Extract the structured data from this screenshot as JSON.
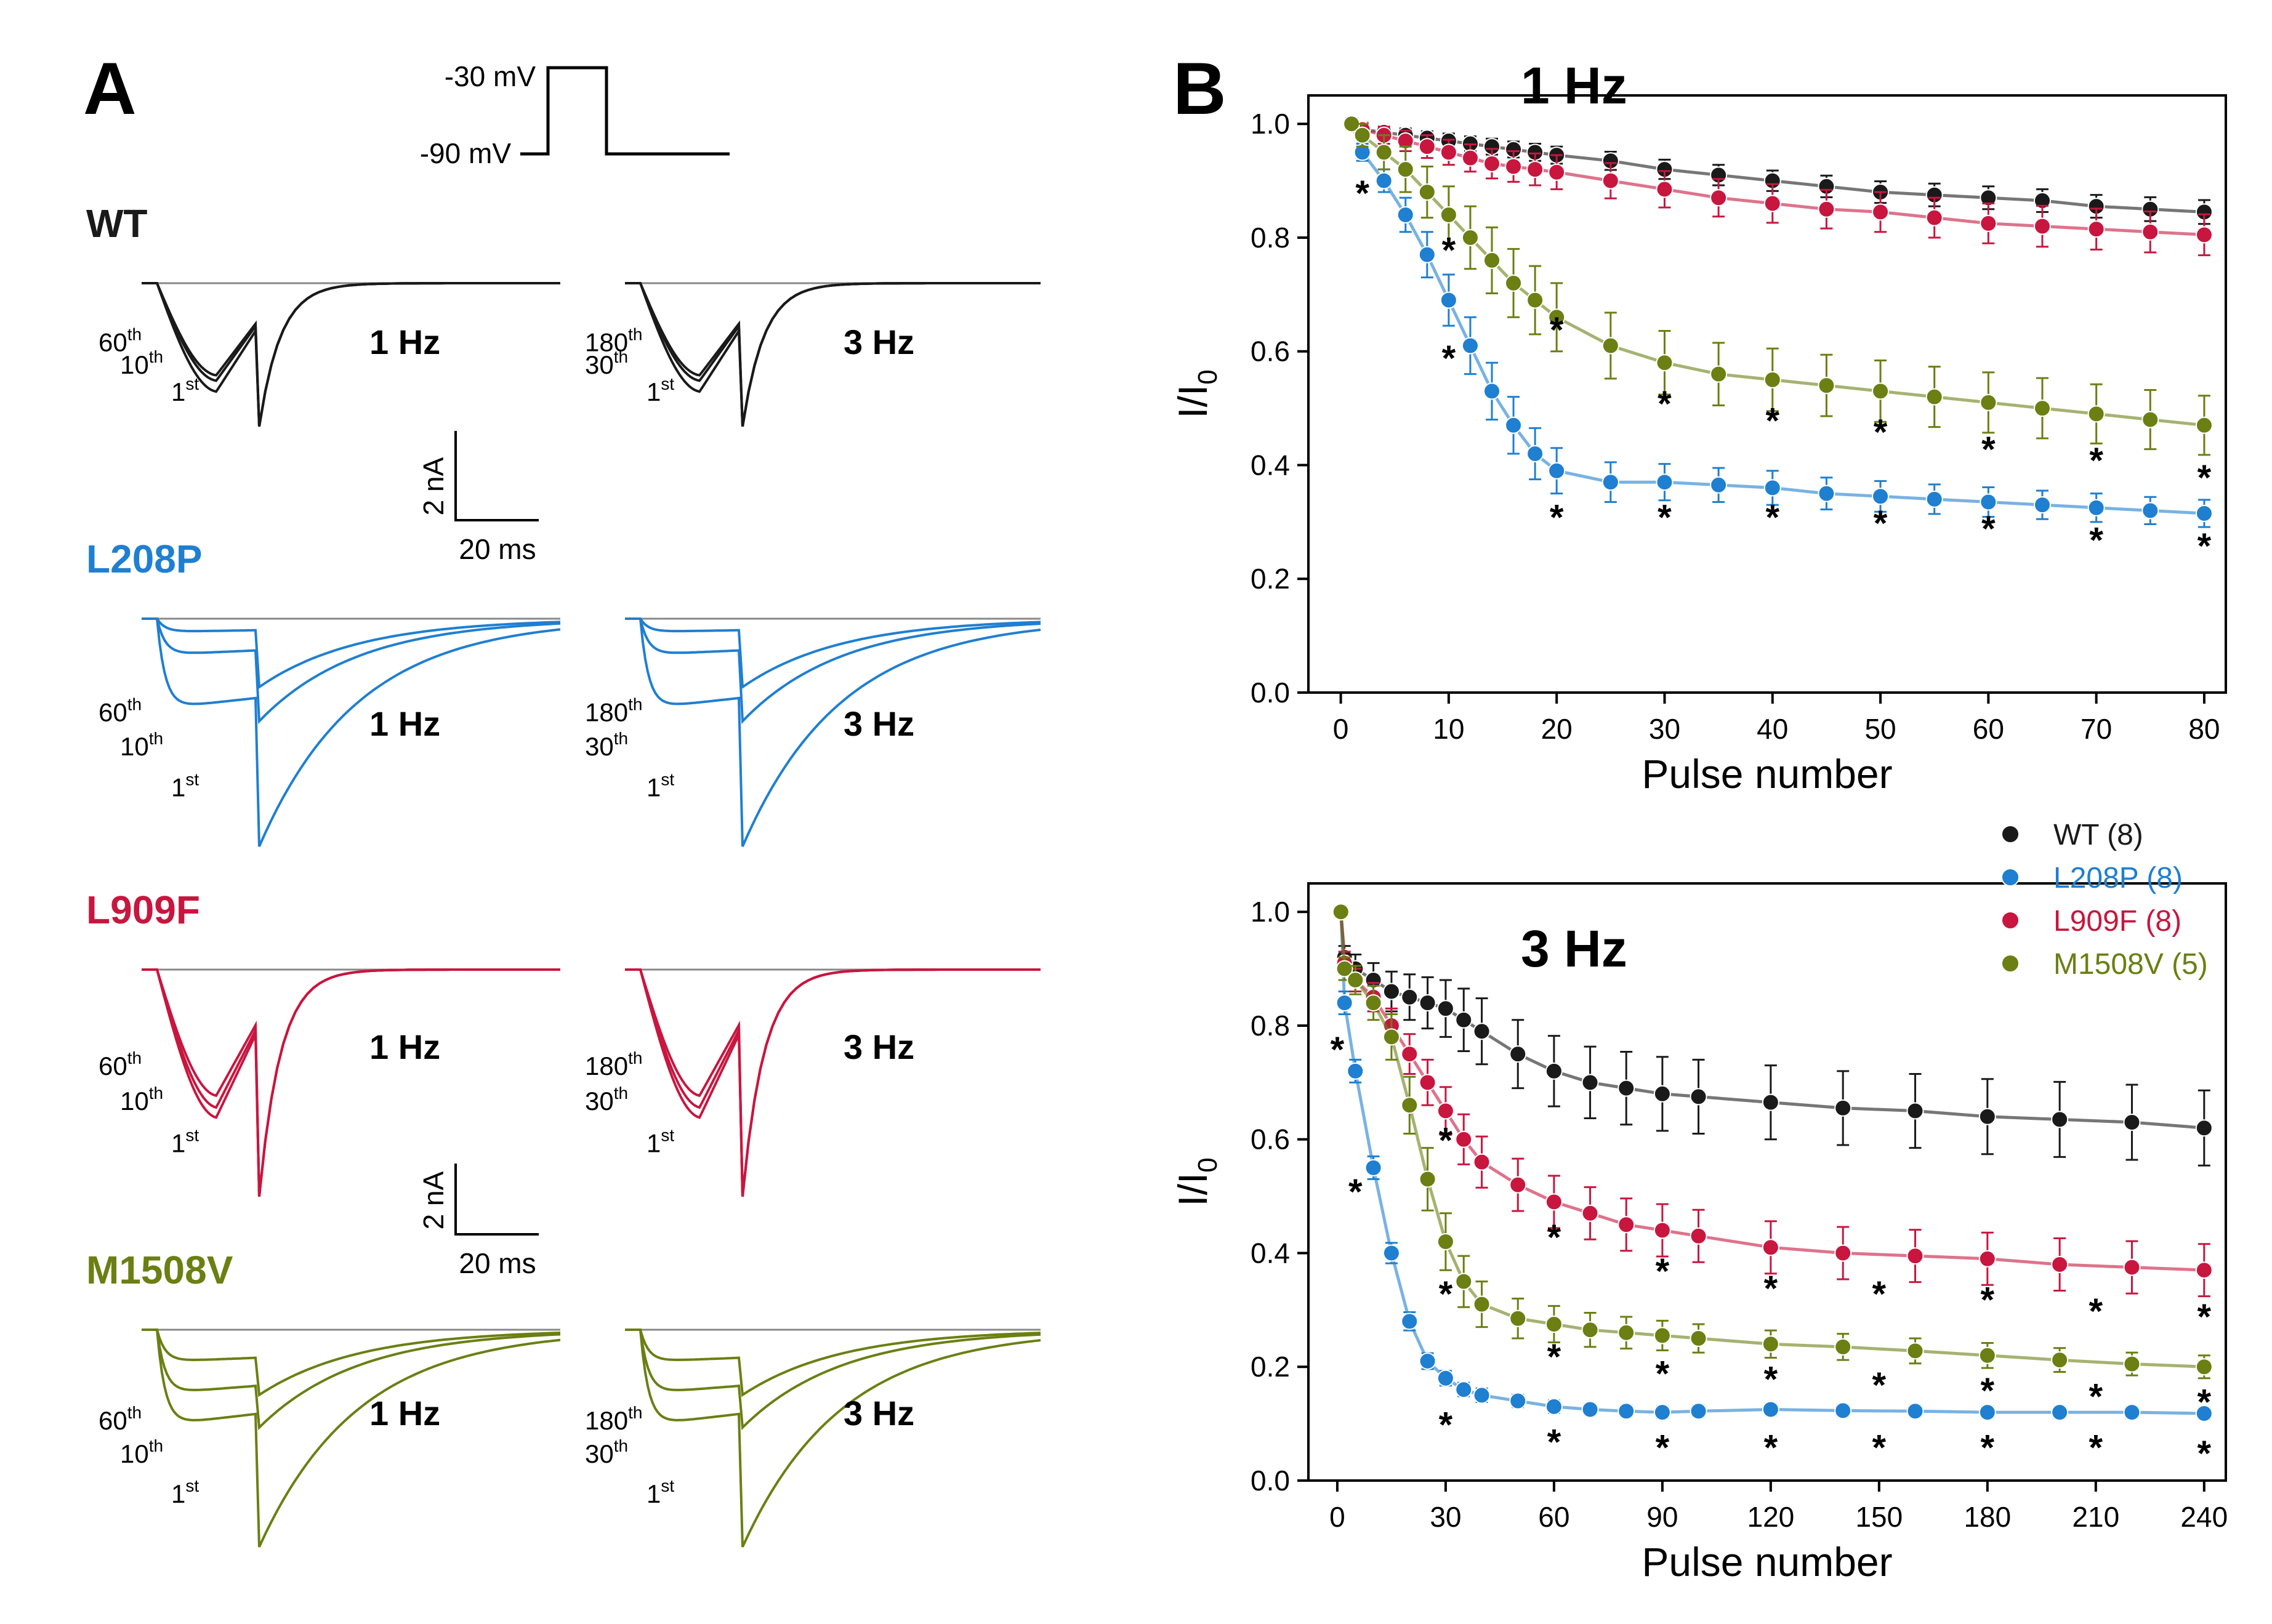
{
  "panels": {
    "a_label": "A",
    "b_label": "B",
    "protocol": {
      "top_label": "-30 mV",
      "bottom_label": "-90 mV"
    },
    "scalebars": [
      {
        "vertical": "2 nA",
        "horizontal": "20 ms"
      },
      {
        "vertical": "2 nA",
        "horizontal": "20 ms"
      }
    ],
    "traces": [
      {
        "key": "wt",
        "name": "WT",
        "color": "#1a1a1a",
        "left_freq": "1 Hz",
        "right_freq": "3 Hz",
        "left_pulses": [
          "60",
          "10",
          "1"
        ],
        "right_pulses": [
          "180",
          "30",
          "1"
        ]
      },
      {
        "key": "l208p",
        "name": "L208P",
        "color": "#1f7fd1",
        "left_freq": "1 Hz",
        "right_freq": "3 Hz",
        "left_pulses": [
          "60",
          "10",
          "1"
        ],
        "right_pulses": [
          "180",
          "30",
          "1"
        ]
      },
      {
        "key": "l909f",
        "name": "L909F",
        "color": "#c8163f",
        "left_freq": "1 Hz",
        "right_freq": "3 Hz",
        "left_pulses": [
          "60",
          "10",
          "1"
        ],
        "right_pulses": [
          "180",
          "30",
          "1"
        ]
      },
      {
        "key": "m1508v",
        "name": "M1508V",
        "color": "#6b7f12",
        "left_freq": "1 Hz",
        "right_freq": "3 Hz",
        "left_pulses": [
          "60",
          "10",
          "1"
        ],
        "right_pulses": [
          "180",
          "30",
          "1"
        ]
      }
    ],
    "ordinal_suffixes": {
      "1": "st",
      "10": "th",
      "30": "th",
      "60": "th",
      "180": "th"
    }
  },
  "chart_data": [
    {
      "type": "scatter",
      "title": "1 Hz",
      "xlabel": "Pulse number",
      "ylabel": "I/I",
      "ylabel_sub": "0",
      "xlim": [
        -3,
        82
      ],
      "ylim": [
        0,
        1.05
      ],
      "xticks": [
        0,
        10,
        20,
        30,
        40,
        50,
        60,
        70,
        80
      ],
      "xtick_labels": [
        "0",
        "10",
        "20",
        "30",
        "40",
        "50",
        "60",
        "70",
        "80"
      ],
      "yticks": [
        0,
        0.2,
        0.4,
        0.6,
        0.8,
        1.0
      ],
      "ytick_labels": [
        "0.0",
        "0.2",
        "0.4",
        "0.6",
        "0.8",
        "1.0"
      ],
      "x": [
        1,
        2,
        4,
        6,
        8,
        10,
        12,
        14,
        16,
        18,
        20,
        25,
        30,
        35,
        40,
        45,
        50,
        55,
        60,
        65,
        70,
        75,
        80
      ],
      "series": [
        {
          "name": "WT (8)",
          "color": "#1a1a1a",
          "values": [
            1.0,
            0.99,
            0.985,
            0.98,
            0.975,
            0.97,
            0.965,
            0.96,
            0.955,
            0.95,
            0.945,
            0.935,
            0.92,
            0.91,
            0.9,
            0.89,
            0.88,
            0.875,
            0.87,
            0.865,
            0.855,
            0.85,
            0.845
          ],
          "errors": [
            0.01,
            0.01,
            0.01,
            0.012,
            0.012,
            0.013,
            0.013,
            0.014,
            0.014,
            0.015,
            0.015,
            0.016,
            0.017,
            0.018,
            0.018,
            0.019,
            0.019,
            0.02,
            0.02,
            0.02,
            0.02,
            0.021,
            0.021
          ]
        },
        {
          "name": "L208P (8)",
          "color": "#1f7fd1",
          "values": [
            1.0,
            0.95,
            0.9,
            0.84,
            0.77,
            0.69,
            0.61,
            0.53,
            0.47,
            0.42,
            0.39,
            0.37,
            0.37,
            0.365,
            0.36,
            0.35,
            0.345,
            0.34,
            0.335,
            0.33,
            0.325,
            0.32,
            0.315
          ],
          "errors": [
            0.01,
            0.015,
            0.02,
            0.03,
            0.04,
            0.045,
            0.05,
            0.05,
            0.05,
            0.045,
            0.04,
            0.035,
            0.032,
            0.03,
            0.03,
            0.028,
            0.027,
            0.026,
            0.026,
            0.025,
            0.025,
            0.024,
            0.024
          ]
        },
        {
          "name": "L909F (8)",
          "color": "#c8163f",
          "values": [
            1.0,
            0.99,
            0.98,
            0.97,
            0.96,
            0.95,
            0.94,
            0.93,
            0.925,
            0.92,
            0.915,
            0.9,
            0.885,
            0.87,
            0.86,
            0.85,
            0.845,
            0.835,
            0.825,
            0.82,
            0.815,
            0.81,
            0.805
          ],
          "errors": [
            0.01,
            0.012,
            0.015,
            0.018,
            0.02,
            0.022,
            0.024,
            0.026,
            0.027,
            0.028,
            0.03,
            0.031,
            0.032,
            0.033,
            0.034,
            0.034,
            0.035,
            0.035,
            0.035,
            0.036,
            0.036,
            0.036,
            0.036
          ]
        },
        {
          "name": "M1508V (5)",
          "color": "#6b7f12",
          "values": [
            1.0,
            0.98,
            0.95,
            0.92,
            0.88,
            0.84,
            0.8,
            0.76,
            0.72,
            0.69,
            0.66,
            0.61,
            0.58,
            0.56,
            0.55,
            0.54,
            0.53,
            0.52,
            0.51,
            0.5,
            0.49,
            0.48,
            0.47
          ],
          "errors": [
            0.01,
            0.02,
            0.03,
            0.04,
            0.045,
            0.05,
            0.055,
            0.058,
            0.06,
            0.06,
            0.06,
            0.058,
            0.056,
            0.055,
            0.055,
            0.054,
            0.054,
            0.053,
            0.053,
            0.053,
            0.052,
            0.052,
            0.052
          ]
        }
      ],
      "annotations": [
        {
          "text": "*",
          "x": 2,
          "y": 0.88
        },
        {
          "text": "*",
          "x": 10,
          "y": 0.59
        },
        {
          "text": "*",
          "x": 20,
          "y": 0.31
        },
        {
          "text": "*",
          "x": 30,
          "y": 0.31
        },
        {
          "text": "*",
          "x": 40,
          "y": 0.31
        },
        {
          "text": "*",
          "x": 50,
          "y": 0.3
        },
        {
          "text": "*",
          "x": 60,
          "y": 0.29
        },
        {
          "text": "*",
          "x": 70,
          "y": 0.27
        },
        {
          "text": "*",
          "x": 80,
          "y": 0.26
        },
        {
          "text": "*",
          "x": 10,
          "y": 0.78
        },
        {
          "text": "*",
          "x": 20,
          "y": 0.64
        },
        {
          "text": "*",
          "x": 30,
          "y": 0.51
        },
        {
          "text": "*",
          "x": 40,
          "y": 0.48
        },
        {
          "text": "*",
          "x": 50,
          "y": 0.46
        },
        {
          "text": "*",
          "x": 60,
          "y": 0.43
        },
        {
          "text": "*",
          "x": 70,
          "y": 0.41
        },
        {
          "text": "*",
          "x": 80,
          "y": 0.38
        }
      ]
    },
    {
      "type": "scatter",
      "title": "3 Hz",
      "xlabel": "Pulse number",
      "ylabel": "I/I",
      "ylabel_sub": "0",
      "xlim": [
        -8,
        246
      ],
      "ylim": [
        0,
        1.05
      ],
      "xticks": [
        0,
        30,
        60,
        90,
        120,
        150,
        180,
        210,
        240
      ],
      "xtick_labels": [
        "0",
        "30",
        "60",
        "90",
        "120",
        "150",
        "180",
        "210",
        "240"
      ],
      "yticks": [
        0,
        0.2,
        0.4,
        0.6,
        0.8,
        1.0
      ],
      "ytick_labels": [
        "0.0",
        "0.2",
        "0.4",
        "0.6",
        "0.8",
        "1.0"
      ],
      "x": [
        1,
        2,
        5,
        10,
        15,
        20,
        25,
        30,
        35,
        40,
        50,
        60,
        70,
        80,
        90,
        100,
        120,
        140,
        160,
        180,
        200,
        220,
        240
      ],
      "series": [
        {
          "name": "WT (8)",
          "color": "#1a1a1a",
          "values": [
            1.0,
            0.92,
            0.9,
            0.88,
            0.86,
            0.85,
            0.84,
            0.83,
            0.81,
            0.79,
            0.75,
            0.72,
            0.7,
            0.69,
            0.68,
            0.675,
            0.665,
            0.655,
            0.65,
            0.64,
            0.635,
            0.63,
            0.62
          ],
          "errors": [
            0.0,
            0.02,
            0.025,
            0.03,
            0.035,
            0.04,
            0.045,
            0.05,
            0.055,
            0.058,
            0.06,
            0.062,
            0.063,
            0.064,
            0.065,
            0.065,
            0.065,
            0.065,
            0.065,
            0.066,
            0.066,
            0.066,
            0.066
          ]
        },
        {
          "name": "L208P (8)",
          "color": "#1f7fd1",
          "values": [
            1.0,
            0.84,
            0.72,
            0.55,
            0.4,
            0.28,
            0.21,
            0.18,
            0.16,
            0.15,
            0.14,
            0.13,
            0.125,
            0.122,
            0.12,
            0.122,
            0.125,
            0.123,
            0.122,
            0.12,
            0.12,
            0.12,
            0.118
          ],
          "errors": [
            0.0,
            0.02,
            0.02,
            0.02,
            0.018,
            0.016,
            0.014,
            0.013,
            0.012,
            0.012,
            0.011,
            0.011,
            0.01,
            0.01,
            0.01,
            0.01,
            0.01,
            0.01,
            0.01,
            0.01,
            0.01,
            0.01,
            0.01
          ]
        },
        {
          "name": "L909F (8)",
          "color": "#c8163f",
          "values": [
            1.0,
            0.91,
            0.88,
            0.85,
            0.8,
            0.75,
            0.7,
            0.65,
            0.6,
            0.56,
            0.52,
            0.49,
            0.47,
            0.45,
            0.44,
            0.43,
            0.41,
            0.4,
            0.395,
            0.39,
            0.38,
            0.375,
            0.37
          ],
          "errors": [
            0.0,
            0.02,
            0.02,
            0.025,
            0.03,
            0.035,
            0.04,
            0.042,
            0.044,
            0.045,
            0.046,
            0.046,
            0.046,
            0.046,
            0.046,
            0.046,
            0.046,
            0.046,
            0.046,
            0.046,
            0.046,
            0.046,
            0.046
          ]
        },
        {
          "name": "M1508V (5)",
          "color": "#6b7f12",
          "values": [
            1.0,
            0.9,
            0.88,
            0.84,
            0.78,
            0.66,
            0.53,
            0.42,
            0.35,
            0.31,
            0.285,
            0.275,
            0.265,
            0.26,
            0.255,
            0.25,
            0.24,
            0.235,
            0.228,
            0.22,
            0.212,
            0.205,
            0.2
          ],
          "errors": [
            0.0,
            0.02,
            0.025,
            0.03,
            0.04,
            0.05,
            0.055,
            0.05,
            0.045,
            0.04,
            0.035,
            0.032,
            0.03,
            0.028,
            0.026,
            0.025,
            0.024,
            0.023,
            0.022,
            0.022,
            0.021,
            0.02,
            0.02
          ]
        }
      ],
      "annotations": [
        {
          "text": "*",
          "x": 0,
          "y": 0.76
        },
        {
          "text": "*",
          "x": 5,
          "y": 0.51
        },
        {
          "text": "*",
          "x": 30,
          "y": 0.33
        },
        {
          "text": "*",
          "x": 30,
          "y": 0.6
        },
        {
          "text": "*",
          "x": 30,
          "y": 0.1
        },
        {
          "text": "*",
          "x": 60,
          "y": 0.43
        },
        {
          "text": "*",
          "x": 60,
          "y": 0.22
        },
        {
          "text": "*",
          "x": 60,
          "y": 0.07
        },
        {
          "text": "*",
          "x": 90,
          "y": 0.37
        },
        {
          "text": "*",
          "x": 90,
          "y": 0.19
        },
        {
          "text": "*",
          "x": 90,
          "y": 0.06
        },
        {
          "text": "*",
          "x": 120,
          "y": 0.34
        },
        {
          "text": "*",
          "x": 120,
          "y": 0.18
        },
        {
          "text": "*",
          "x": 120,
          "y": 0.06
        },
        {
          "text": "*",
          "x": 150,
          "y": 0.33
        },
        {
          "text": "*",
          "x": 150,
          "y": 0.17
        },
        {
          "text": "*",
          "x": 150,
          "y": 0.06
        },
        {
          "text": "*",
          "x": 180,
          "y": 0.32
        },
        {
          "text": "*",
          "x": 180,
          "y": 0.16
        },
        {
          "text": "*",
          "x": 180,
          "y": 0.06
        },
        {
          "text": "*",
          "x": 210,
          "y": 0.3
        },
        {
          "text": "*",
          "x": 210,
          "y": 0.15
        },
        {
          "text": "*",
          "x": 210,
          "y": 0.06
        },
        {
          "text": "*",
          "x": 240,
          "y": 0.29
        },
        {
          "text": "*",
          "x": 240,
          "y": 0.14
        },
        {
          "text": "*",
          "x": 240,
          "y": 0.05
        }
      ]
    }
  ]
}
